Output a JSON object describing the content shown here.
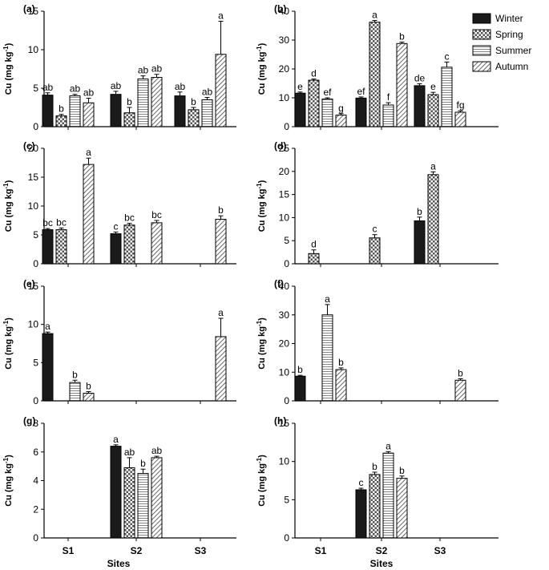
{
  "chart_data": [
    {
      "panel": "(a)",
      "type": "bar",
      "ylabel": "Cu (mg kg-1)",
      "ylim": [
        0,
        15
      ],
      "yticks": [
        0,
        5,
        10,
        15
      ],
      "categories": [
        "S1",
        "S2",
        "S3"
      ],
      "series": [
        {
          "name": "Winter",
          "values": [
            4.1,
            4.2,
            4.0
          ],
          "errors": [
            0.3,
            0.4,
            0.5
          ],
          "letters": [
            "ab",
            "ab",
            "ab"
          ]
        },
        {
          "name": "Spring",
          "values": [
            1.4,
            1.8,
            2.2
          ],
          "errors": [
            0.2,
            0.7,
            0.3
          ],
          "letters": [
            "b",
            "b",
            "b"
          ]
        },
        {
          "name": "Summer",
          "values": [
            4.0,
            6.2,
            3.5
          ],
          "errors": [
            0.2,
            0.4,
            0.3
          ],
          "letters": [
            "ab",
            "ab",
            "ab"
          ]
        },
        {
          "name": "Autumn",
          "values": [
            3.1,
            6.4,
            9.4
          ],
          "errors": [
            0.6,
            0.4,
            4.3
          ],
          "letters": [
            "ab",
            "ab",
            "a"
          ]
        }
      ]
    },
    {
      "panel": "(b)",
      "type": "bar",
      "ylabel": "Cu (mg kg-1)",
      "ylim": [
        0,
        40
      ],
      "yticks": [
        0,
        10,
        20,
        30,
        40
      ],
      "categories": [
        "S1",
        "S2",
        "S3"
      ],
      "series": [
        {
          "name": "Winter",
          "values": [
            11.6,
            9.9,
            14.2
          ],
          "errors": [
            0.4,
            0.4,
            0.7
          ],
          "letters": [
            "e",
            "ef",
            "de"
          ]
        },
        {
          "name": "Spring",
          "values": [
            16.1,
            36.2,
            11.1
          ],
          "errors": [
            0.4,
            0.6,
            0.8
          ],
          "letters": [
            "d",
            "a",
            "e"
          ]
        },
        {
          "name": "Summer",
          "values": [
            9.6,
            7.5,
            20.6
          ],
          "errors": [
            0.4,
            0.8,
            1.8
          ],
          "letters": [
            "ef",
            "f",
            "c"
          ]
        },
        {
          "name": "Autumn",
          "values": [
            4.0,
            28.8,
            5.0
          ],
          "errors": [
            0.5,
            0.5,
            0.5
          ],
          "letters": [
            "g",
            "b",
            "fg"
          ]
        }
      ]
    },
    {
      "panel": "(c)",
      "type": "bar",
      "ylabel": "Cu (mg kg-1)",
      "ylim": [
        0,
        20
      ],
      "yticks": [
        0,
        5,
        10,
        15,
        20
      ],
      "categories": [
        "S1",
        "S2",
        "S3"
      ],
      "series": [
        {
          "name": "Winter",
          "values": [
            5.9,
            5.2,
            null
          ],
          "errors": [
            0.2,
            0.3,
            0
          ],
          "letters": [
            "bc",
            "c",
            ""
          ]
        },
        {
          "name": "Spring",
          "values": [
            5.9,
            6.7,
            null
          ],
          "errors": [
            0.3,
            0.3,
            0
          ],
          "letters": [
            "bc",
            "bc",
            ""
          ]
        },
        {
          "name": "Summer",
          "values": [
            null,
            null,
            null
          ],
          "errors": [
            0,
            0,
            0
          ],
          "letters": [
            "",
            "",
            ""
          ]
        },
        {
          "name": "Autumn",
          "values": [
            17.2,
            7.1,
            7.7
          ],
          "errors": [
            1.1,
            0.4,
            0.6
          ],
          "letters": [
            "a",
            "bc",
            "b"
          ]
        }
      ]
    },
    {
      "panel": "(d)",
      "type": "bar",
      "ylabel": "Cu (mg kg-1)",
      "ylim": [
        0,
        25
      ],
      "yticks": [
        0,
        5,
        10,
        15,
        20,
        25
      ],
      "categories": [
        "S1",
        "S2",
        "S3"
      ],
      "series": [
        {
          "name": "Winter",
          "values": [
            null,
            null,
            9.3
          ],
          "errors": [
            0,
            0,
            0.8
          ],
          "letters": [
            "",
            "",
            "b"
          ]
        },
        {
          "name": "Spring",
          "values": [
            2.2,
            5.6,
            19.3
          ],
          "errors": [
            0.8,
            0.7,
            0.6
          ],
          "letters": [
            "d",
            "c",
            "a"
          ]
        },
        {
          "name": "Summer",
          "values": [
            null,
            null,
            null
          ],
          "errors": [
            0,
            0,
            0
          ],
          "letters": [
            "",
            "",
            ""
          ]
        },
        {
          "name": "Autumn",
          "values": [
            null,
            null,
            null
          ],
          "errors": [
            0,
            0,
            0
          ],
          "letters": [
            "",
            "",
            ""
          ]
        }
      ]
    },
    {
      "panel": "(e)",
      "type": "bar",
      "ylabel": "Cu (mg kg-1)",
      "ylim": [
        0,
        15
      ],
      "yticks": [
        0,
        5,
        10,
        15
      ],
      "categories": [
        "S1",
        "S2",
        "S3"
      ],
      "series": [
        {
          "name": "Winter",
          "values": [
            8.8,
            null,
            null
          ],
          "errors": [
            0.2,
            0,
            0
          ],
          "letters": [
            "a",
            "",
            ""
          ]
        },
        {
          "name": "Spring",
          "values": [
            null,
            null,
            null
          ],
          "errors": [
            0,
            0,
            0
          ],
          "letters": [
            "",
            "",
            ""
          ]
        },
        {
          "name": "Summer",
          "values": [
            2.4,
            null,
            null
          ],
          "errors": [
            0.3,
            0,
            0
          ],
          "letters": [
            "b",
            "",
            ""
          ]
        },
        {
          "name": "Autumn",
          "values": [
            1.0,
            null,
            8.4
          ],
          "errors": [
            0.2,
            0,
            2.4
          ],
          "letters": [
            "b",
            "",
            "a"
          ]
        }
      ]
    },
    {
      "panel": "(f)",
      "type": "bar",
      "ylabel": "Cu (mg kg-1)",
      "ylim": [
        0,
        40
      ],
      "yticks": [
        0,
        10,
        20,
        30,
        40
      ],
      "categories": [
        "S1",
        "S2",
        "S3"
      ],
      "series": [
        {
          "name": "Winter",
          "values": [
            8.6,
            null,
            null
          ],
          "errors": [
            0.3,
            0,
            0
          ],
          "letters": [
            "b",
            "",
            ""
          ]
        },
        {
          "name": "Spring",
          "values": [
            null,
            null,
            null
          ],
          "errors": [
            0,
            0,
            0
          ],
          "letters": [
            "",
            "",
            ""
          ]
        },
        {
          "name": "Summer",
          "values": [
            30.0,
            null,
            null
          ],
          "errors": [
            3.6,
            0,
            0
          ],
          "letters": [
            "a",
            "",
            ""
          ]
        },
        {
          "name": "Autumn",
          "values": [
            10.9,
            null,
            7.2
          ],
          "errors": [
            0.6,
            0,
            0.5
          ],
          "letters": [
            "b",
            "",
            "b"
          ]
        }
      ]
    },
    {
      "panel": "(g)",
      "type": "bar",
      "ylabel": "Cu (mg kg-1)",
      "ylim": [
        0,
        8
      ],
      "yticks": [
        0,
        2,
        4,
        6,
        8
      ],
      "categories": [
        "S1",
        "S2",
        "S3"
      ],
      "series": [
        {
          "name": "Winter",
          "values": [
            null,
            6.4,
            null
          ],
          "errors": [
            0,
            0.1,
            0
          ],
          "letters": [
            "",
            "a",
            ""
          ]
        },
        {
          "name": "Spring",
          "values": [
            null,
            4.9,
            null
          ],
          "errors": [
            0,
            0.7,
            0
          ],
          "letters": [
            "",
            "ab",
            ""
          ]
        },
        {
          "name": "Summer",
          "values": [
            null,
            4.5,
            null
          ],
          "errors": [
            0,
            0.3,
            0
          ],
          "letters": [
            "",
            "b",
            ""
          ]
        },
        {
          "name": "Autumn",
          "values": [
            null,
            5.6,
            null
          ],
          "errors": [
            0,
            0.1,
            0
          ],
          "letters": [
            "",
            "ab",
            ""
          ]
        }
      ]
    },
    {
      "panel": "(h)",
      "type": "bar",
      "ylabel": "Cu (mg kg-1)",
      "ylim": [
        0,
        15
      ],
      "yticks": [
        0,
        5,
        10,
        15
      ],
      "categories": [
        "S1",
        "S2",
        "S3"
      ],
      "series": [
        {
          "name": "Winter",
          "values": [
            null,
            6.3,
            null
          ],
          "errors": [
            0,
            0.2,
            0
          ],
          "letters": [
            "",
            "c",
            ""
          ]
        },
        {
          "name": "Spring",
          "values": [
            null,
            8.3,
            null
          ],
          "errors": [
            0,
            0.3,
            0
          ],
          "letters": [
            "",
            "b",
            ""
          ]
        },
        {
          "name": "Summer",
          "values": [
            null,
            11.1,
            null
          ],
          "errors": [
            0,
            0.2,
            0
          ],
          "letters": [
            "",
            "a",
            ""
          ]
        },
        {
          "name": "Autumn",
          "values": [
            null,
            7.8,
            null
          ],
          "errors": [
            0,
            0.3,
            0
          ],
          "letters": [
            "",
            "b",
            ""
          ]
        }
      ]
    }
  ],
  "legend": {
    "items": [
      "Winter",
      "Spring",
      "Summer",
      "Autumn"
    ]
  },
  "x_title": "Sites"
}
